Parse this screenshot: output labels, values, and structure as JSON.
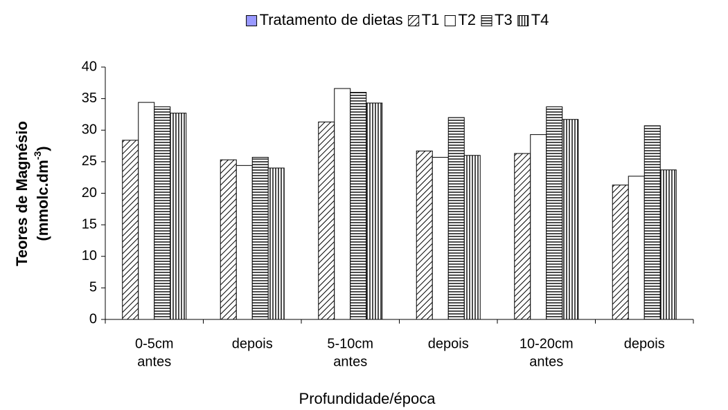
{
  "chart_data": {
    "type": "bar",
    "legend_title": "Tratamento de dietas",
    "legend_title_color": "#9999ff",
    "categories": [
      [
        "0-5cm",
        "antes"
      ],
      [
        "depois"
      ],
      [
        "5-10cm",
        "antes"
      ],
      [
        "depois"
      ],
      [
        "10-20cm",
        "antes"
      ],
      [
        "depois"
      ]
    ],
    "series": [
      {
        "name": "T1",
        "color": "#000000",
        "pattern": "diagonal",
        "values": [
          28.4,
          25.3,
          31.3,
          26.7,
          26.3,
          21.3
        ]
      },
      {
        "name": "T2",
        "color": "#000000",
        "pattern": "none",
        "values": [
          34.4,
          24.4,
          36.6,
          25.7,
          29.3,
          22.7
        ]
      },
      {
        "name": "T3",
        "color": "#000000",
        "pattern": "horizontal",
        "values": [
          33.7,
          25.7,
          36.0,
          32.0,
          33.7,
          30.7
        ]
      },
      {
        "name": "T4",
        "color": "#000000",
        "pattern": "vertical",
        "values": [
          32.7,
          24.0,
          34.3,
          26.0,
          31.7,
          23.7
        ]
      }
    ],
    "ylabel": [
      "Teores de Magnésio",
      "(mmolc.dm",
      "-3",
      ")"
    ],
    "xlabel": "Profundidade/época",
    "ylim": [
      0,
      40
    ],
    "yticks": [
      0,
      5,
      10,
      15,
      20,
      25,
      30,
      35,
      40
    ],
    "grid": false
  }
}
